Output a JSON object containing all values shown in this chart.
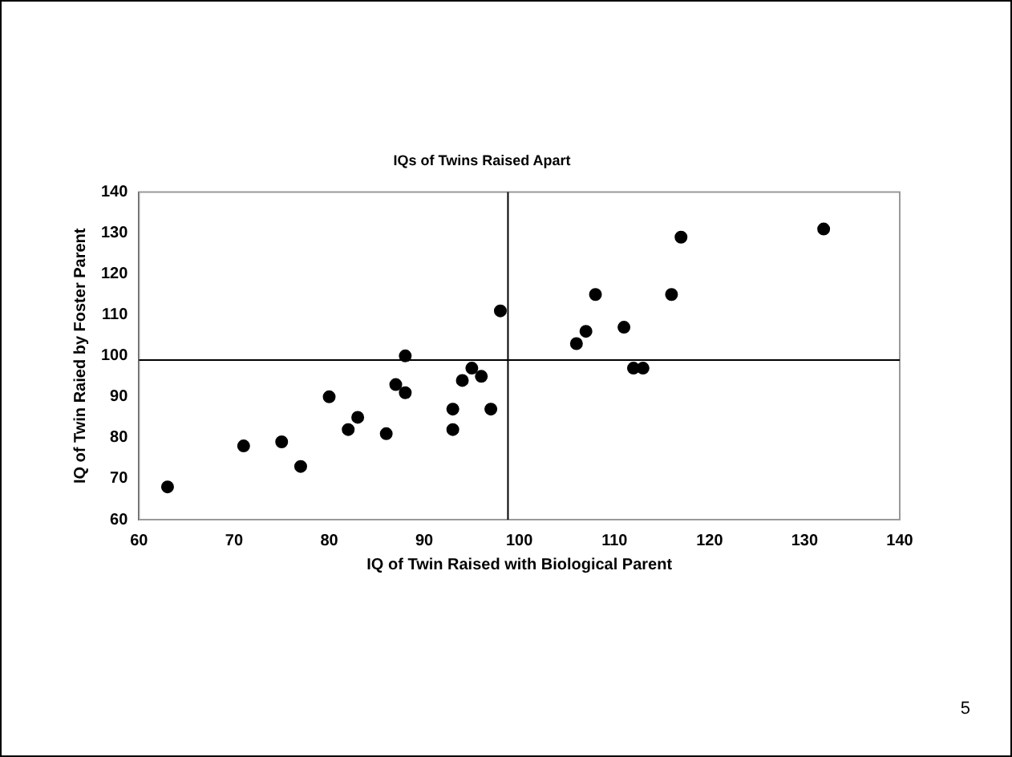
{
  "chart_data": {
    "type": "scatter",
    "title": "IQs of Twins Raised Apart",
    "xlabel": "IQ of Twin Raised with Biological Parent",
    "ylabel": "IQ of Twin Raied by Foster Parent",
    "x": [
      63,
      71,
      75,
      77,
      80,
      82,
      83,
      86,
      87,
      88,
      88,
      93,
      93,
      94,
      95,
      96,
      97,
      98,
      106,
      107,
      108,
      111,
      112,
      113,
      116,
      117,
      132
    ],
    "series": [
      {
        "color": "#000000",
        "values": [
          68,
          78,
          79,
          73,
          90,
          82,
          85,
          81,
          93,
          100,
          91,
          87,
          82,
          94,
          97,
          95,
          87,
          111,
          103,
          106,
          115,
          107,
          97,
          97,
          115,
          129,
          131
        ]
      }
    ],
    "xlim": [
      60,
      140
    ],
    "xticks": [
      60,
      70,
      80,
      90,
      100,
      110,
      120,
      130,
      140
    ],
    "ylim": [
      60,
      140
    ],
    "yticks": [
      60,
      70,
      80,
      90,
      100,
      110,
      120,
      130,
      140
    ],
    "ref_lines": [
      {
        "axis": "x",
        "value": 98.8,
        "color": "#000000"
      },
      {
        "axis": "y",
        "value": 99,
        "color": "#000000"
      }
    ],
    "marker": "circle",
    "grid": false,
    "legend": false,
    "annotations": [
      "5"
    ]
  }
}
